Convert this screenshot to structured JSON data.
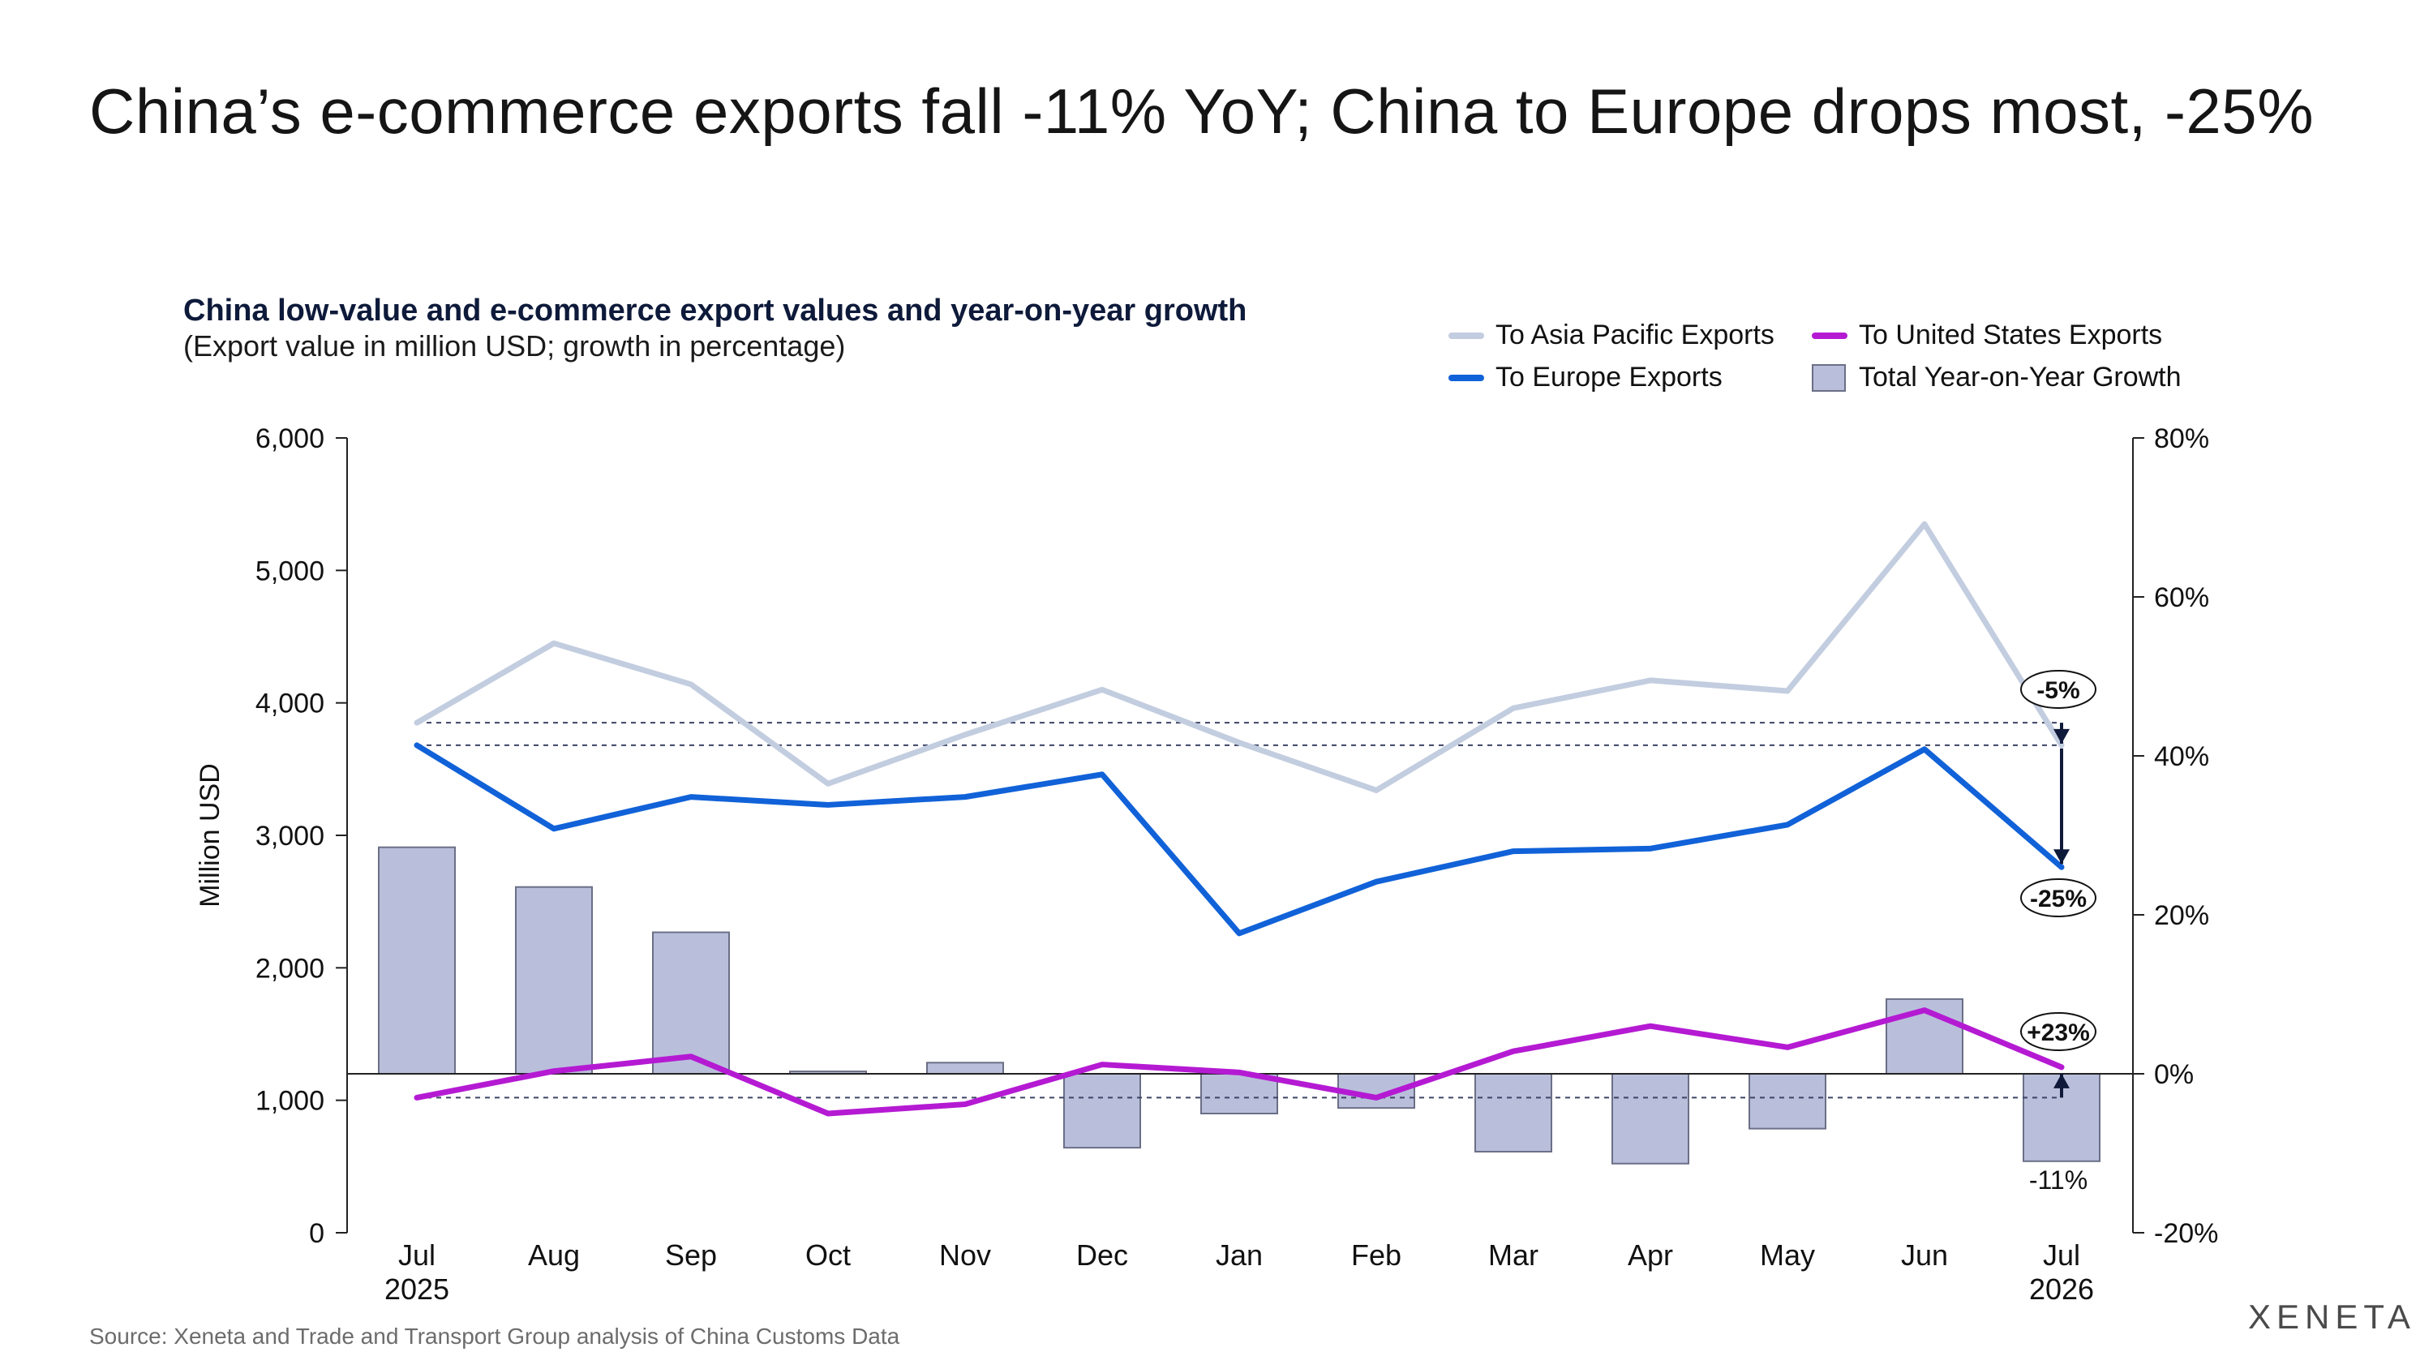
{
  "headline": "China’s e-commerce exports fall -11% YoY; China to Europe drops most, -25%",
  "source": "Source: Xeneta and Trade and Transport Group analysis of China Customs Data",
  "logo_text": "XENETA",
  "colors": {
    "asia": "#c3cde0",
    "us": "#b51ad3",
    "europe": "#1162d8",
    "bars_fill": "#b9bfdb",
    "bars_stroke": "#6b6f86",
    "annotation": "#0f1a3a"
  },
  "chart_data": {
    "type": "bar",
    "title": "China low-value and e-commerce export values and year-on-year growth",
    "subtitle": "(Export value in million USD; growth in percentage)",
    "ylabel": "Million USD",
    "categories": [
      "Jul",
      "Aug",
      "Sep",
      "Oct",
      "Nov",
      "Dec",
      "Jan",
      "Feb",
      "Mar",
      "Apr",
      "May",
      "Jun",
      "Jul"
    ],
    "category_years": [
      "2025",
      "",
      "",
      "",
      "",
      "",
      "",
      "",
      "",
      "",
      "",
      "",
      "2026"
    ],
    "left_axis": {
      "min": 0,
      "max": 6000,
      "ticks": [
        "0",
        "1,000",
        "2,000",
        "3,000",
        "4,000",
        "5,000",
        "6,000"
      ]
    },
    "right_axis": {
      "min": -20,
      "max": 80,
      "ticks": [
        "-20%",
        "0%",
        "20%",
        "40%",
        "60%",
        "80%"
      ]
    },
    "legend_placement": "top-right",
    "grid": false,
    "series": [
      {
        "name": "To Asia Pacific Exports",
        "kind": "line",
        "axis": "left",
        "color": "#c3cde0",
        "values": [
          3850,
          4450,
          4140,
          3390,
          3760,
          4100,
          3700,
          3340,
          3960,
          4170,
          4090,
          5350,
          3680
        ]
      },
      {
        "name": "To United States Exports",
        "kind": "line",
        "axis": "left",
        "color": "#b51ad3",
        "values": [
          1020,
          1220,
          1330,
          900,
          970,
          1270,
          1210,
          1020,
          1370,
          1560,
          1400,
          1680,
          1250
        ]
      },
      {
        "name": "To Europe Exports",
        "kind": "line",
        "axis": "left",
        "color": "#1162d8",
        "values": [
          3680,
          3050,
          3290,
          3230,
          3290,
          3460,
          2260,
          2650,
          2880,
          2900,
          3080,
          3650,
          2760
        ]
      },
      {
        "name": "Total Year-on-Year Growth",
        "kind": "bar",
        "axis": "right",
        "color": "#b9bfdb",
        "values": [
          28.5,
          23.5,
          17.8,
          0.3,
          1.4,
          -9.3,
          -5,
          -4.3,
          -9.8,
          -11.3,
          -6.9,
          9.4,
          -11
        ]
      }
    ],
    "annotations": [
      {
        "label": "-5%",
        "series": "To Asia Pacific Exports"
      },
      {
        "label": "-25%",
        "series": "To Europe Exports"
      },
      {
        "label": "+23%",
        "series": "To United States Exports"
      },
      {
        "label": "-11%",
        "series": "Total Year-on-Year Growth"
      }
    ]
  }
}
